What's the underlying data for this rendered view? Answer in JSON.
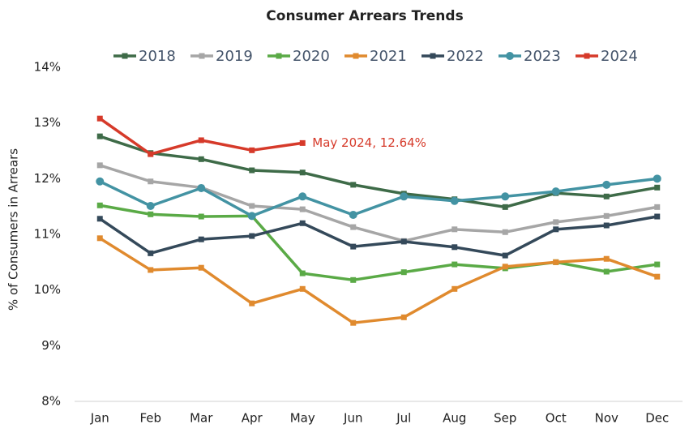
{
  "chart_data": {
    "type": "line",
    "title": "Consumer Arrears Trends",
    "y_label": "% of Consumers in Arrears",
    "categories": [
      "Jan",
      "Feb",
      "Mar",
      "Apr",
      "May",
      "Jun",
      "Jul",
      "Aug",
      "Sep",
      "Oct",
      "Nov",
      "Dec"
    ],
    "series": [
      {
        "name": "2018",
        "color": "#3e6b48",
        "marker": "square",
        "values": [
          12.76,
          12.46,
          12.35,
          12.15,
          12.11,
          11.89,
          11.73,
          11.63,
          11.49,
          11.74,
          11.68,
          11.84
        ]
      },
      {
        "name": "2019",
        "color": "#a6a6a6",
        "marker": "square",
        "values": [
          12.24,
          11.95,
          11.84,
          11.51,
          11.45,
          11.13,
          10.88,
          11.09,
          11.04,
          11.22,
          11.33,
          11.49
        ]
      },
      {
        "name": "2020",
        "color": "#5aaa46",
        "marker": "square",
        "values": [
          11.52,
          11.36,
          11.32,
          11.33,
          10.3,
          10.18,
          10.32,
          10.46,
          10.39,
          10.5,
          10.33,
          10.46
        ]
      },
      {
        "name": "2021",
        "color": "#e08a2e",
        "marker": "square",
        "values": [
          10.93,
          10.36,
          10.4,
          9.76,
          10.02,
          9.41,
          9.51,
          10.02,
          10.42,
          10.5,
          10.56,
          10.24
        ]
      },
      {
        "name": "2022",
        "color": "#34495a",
        "marker": "square",
        "values": [
          11.28,
          10.66,
          10.91,
          10.97,
          11.2,
          10.78,
          10.87,
          10.77,
          10.62,
          11.09,
          11.16,
          11.32
        ]
      },
      {
        "name": "2023",
        "color": "#4393a3",
        "marker": "circle",
        "values": [
          11.95,
          11.51,
          11.83,
          11.33,
          11.68,
          11.35,
          11.68,
          11.6,
          11.68,
          11.77,
          11.89,
          12.0
        ]
      },
      {
        "name": "2024",
        "color": "#d63a2a",
        "marker": "square",
        "values": [
          13.08,
          12.44,
          12.69,
          12.51,
          12.64,
          null,
          null,
          null,
          null,
          null,
          null,
          null
        ]
      }
    ],
    "annotation": {
      "text": "May 2024, 12.64%",
      "series": 6,
      "index": 4,
      "color": "#d63a2a"
    },
    "ylim": [
      8,
      14
    ],
    "yticks": [
      {
        "value": 8,
        "label": "8%"
      },
      {
        "value": 9,
        "label": "9%"
      },
      {
        "value": 10,
        "label": "10%"
      },
      {
        "value": 11,
        "label": "11%"
      },
      {
        "value": 12,
        "label": "12%"
      },
      {
        "value": 13,
        "label": "13%"
      },
      {
        "value": 14,
        "label": "14%"
      }
    ],
    "grid": false,
    "legend": "top"
  }
}
